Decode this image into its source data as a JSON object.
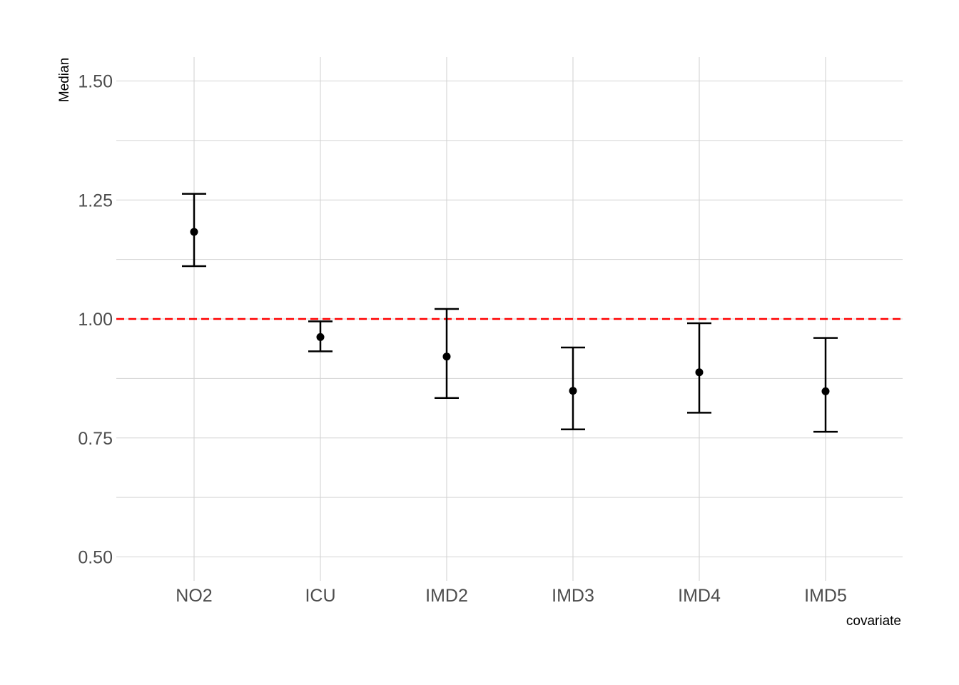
{
  "chart_data": {
    "type": "errorbar",
    "xlabel": "covariate",
    "ylabel": "Median",
    "categories": [
      "NO2",
      "ICU",
      "IMD2",
      "IMD3",
      "IMD4",
      "IMD5"
    ],
    "series": [
      {
        "median": [
          1.183,
          0.962,
          0.921,
          0.849,
          0.888,
          0.848
        ],
        "lower": [
          1.111,
          0.932,
          0.834,
          0.768,
          0.803,
          0.763
        ],
        "upper": [
          1.263,
          0.995,
          1.021,
          0.94,
          0.991,
          0.96
        ]
      }
    ],
    "reference_line": {
      "y": 1.0,
      "color": "#ff0000",
      "style": "dashed"
    },
    "ylim": [
      0.45,
      1.55
    ],
    "yticks": [
      0.5,
      0.75,
      1.0,
      1.25,
      1.5
    ],
    "ytick_labels": [
      "0.50",
      "0.75",
      "1.00",
      "1.25",
      "1.50"
    ],
    "minor_yticks": [
      0.625,
      0.875,
      1.125,
      1.375
    ],
    "grid": true,
    "legend": "none",
    "colors": {
      "point": "#000000",
      "grid": "#d3d3d3",
      "tick_text": "#4d4d4d"
    }
  }
}
